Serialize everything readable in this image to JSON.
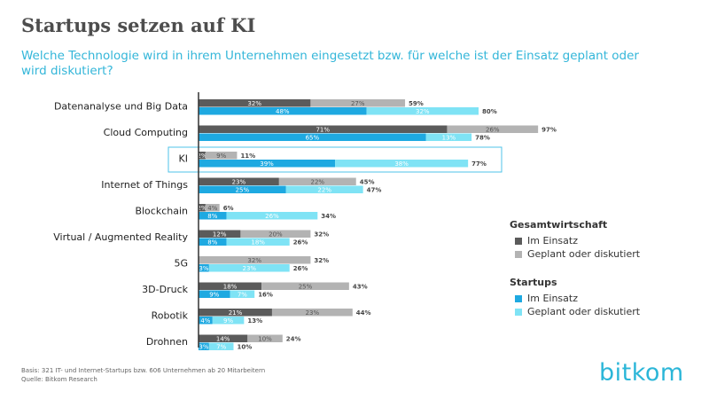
{
  "title": "Startups setzen auf KI",
  "subtitle": "Welche Technologie wird in ihrem Unternehmen eingesetzt bzw. für welche ist der Einsatz geplant oder wird diskutiert?",
  "colors": {
    "gw_einsatz": "#5b5b5b",
    "gw_geplant": "#b3b3b3",
    "st_einsatz": "#1ea9e1",
    "st_geplant": "#7fe3f5",
    "highlight_border": "#4fc3e8",
    "axis": "#333333"
  },
  "legend": {
    "group1_title": "Gesamtwirtschaft",
    "group1_item1": "Im Einsatz",
    "group1_item2": "Geplant oder diskutiert",
    "group2_title": "Startups",
    "group2_item1": "Im Einsatz",
    "group2_item2": "Geplant oder diskutiert"
  },
  "footnote": {
    "line1": "Basis: 321 IT- und Internet-Startups bzw. 606 Unternehmen ab 20 Mitarbeitern",
    "line2": "Quelle: Bitkom Research"
  },
  "logo": "bitkom",
  "chart_data": {
    "type": "bar",
    "orientation": "horizontal",
    "stacked": true,
    "unit": "%",
    "xlim": [
      0,
      100
    ],
    "highlight_category": "KI",
    "categories": [
      "Datenanalyse und Big Data",
      "Cloud Computing",
      "KI",
      "Internet of Things",
      "Blockchain",
      "Virtual / Augmented Reality",
      "5G",
      "3D-Druck",
      "Robotik",
      "Drohnen"
    ],
    "groups": [
      {
        "name": "Gesamtwirtschaft",
        "series": [
          {
            "name": "Im Einsatz",
            "values": [
              32,
              71,
              2,
              23,
              2,
              12,
              0,
              18,
              21,
              14
            ]
          },
          {
            "name": "Geplant oder diskutiert",
            "values": [
              27,
              26,
              9,
              22,
              4,
              20,
              32,
              25,
              23,
              10
            ]
          }
        ],
        "totals": [
          59,
          97,
          11,
          45,
          6,
          32,
          32,
          43,
          44,
          24
        ]
      },
      {
        "name": "Startups",
        "series": [
          {
            "name": "Im Einsatz",
            "values": [
              48,
              65,
              39,
              25,
              8,
              8,
              3,
              9,
              4,
              3
            ]
          },
          {
            "name": "Geplant oder diskutiert",
            "values": [
              32,
              13,
              38,
              22,
              26,
              18,
              23,
              7,
              9,
              7
            ]
          }
        ],
        "totals": [
          80,
          78,
          77,
          47,
          34,
          26,
          26,
          16,
          13,
          10
        ]
      }
    ]
  }
}
